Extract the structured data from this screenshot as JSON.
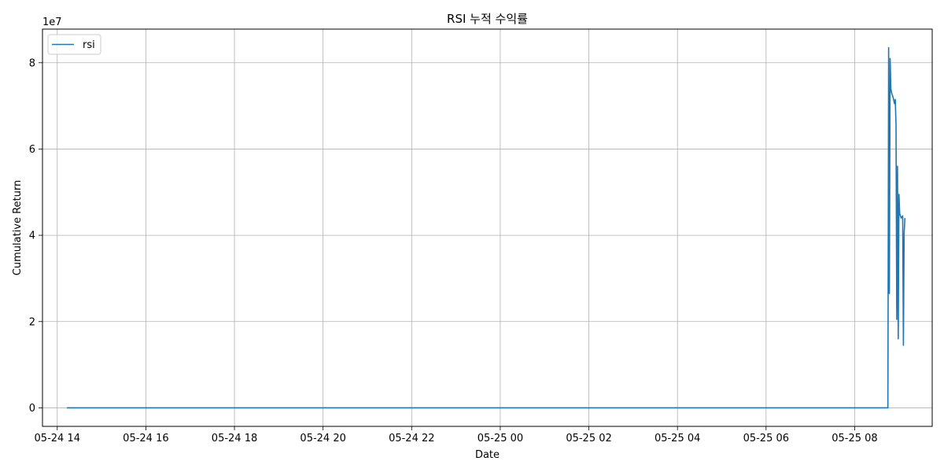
{
  "chart_data": {
    "type": "line",
    "title": "RSI 누적 수익률",
    "xlabel": "Date",
    "ylabel": "Cumulative Return",
    "y_offset_label": "1e7",
    "y_scale": 10000000,
    "x_tick_labels": [
      "05-24 14",
      "05-24 16",
      "05-24 18",
      "05-24 20",
      "05-24 22",
      "05-25 00",
      "05-25 02",
      "05-25 04",
      "05-25 06",
      "05-25 08"
    ],
    "x_ticks": [
      "05-24 14:00",
      "05-24 16:00",
      "05-24 18:00",
      "05-24 20:00",
      "05-24 22:00",
      "05-25 00:00",
      "05-25 02:00",
      "05-25 04:00",
      "05-25 06:00",
      "05-25 08:00"
    ],
    "xlim": [
      "05-24 13:40",
      "05-25 09:45"
    ],
    "y_ticks": [
      0,
      20000000,
      40000000,
      60000000,
      80000000
    ],
    "y_tick_labels": [
      "0",
      "2",
      "4",
      "6",
      "8"
    ],
    "ylim": [
      -4300000,
      87800000
    ],
    "grid": true,
    "legend": {
      "position": "upper-left",
      "entries": [
        "rsi"
      ]
    },
    "colors": {
      "series": "#1f77b4",
      "grid": "#b0b0b0"
    },
    "series": [
      {
        "name": "rsi",
        "points": [
          [
            "05-24 14:13",
            0
          ],
          [
            "05-25 08:45",
            0
          ],
          [
            "05-25 08:46",
            83500000
          ],
          [
            "05-25 08:47",
            26500000
          ],
          [
            "05-25 08:48",
            81000000
          ],
          [
            "05-25 08:49",
            74000000
          ],
          [
            "05-25 08:50",
            73000000
          ],
          [
            "05-25 08:52",
            72000000
          ],
          [
            "05-25 08:54",
            70500000
          ],
          [
            "05-25 08:55",
            71500000
          ],
          [
            "05-25 08:56",
            65500000
          ],
          [
            "05-25 08:57",
            20500000
          ],
          [
            "05-25 08:58",
            56000000
          ],
          [
            "05-25 08:59",
            16000000
          ],
          [
            "05-25 09:00",
            49500000
          ],
          [
            "05-25 09:01",
            45000000
          ],
          [
            "05-25 09:03",
            44000000
          ],
          [
            "05-25 09:05",
            44500000
          ],
          [
            "05-25 09:06",
            14500000
          ],
          [
            "05-25 09:07",
            40500000
          ],
          [
            "05-25 09:08",
            44000000
          ]
        ]
      }
    ]
  }
}
